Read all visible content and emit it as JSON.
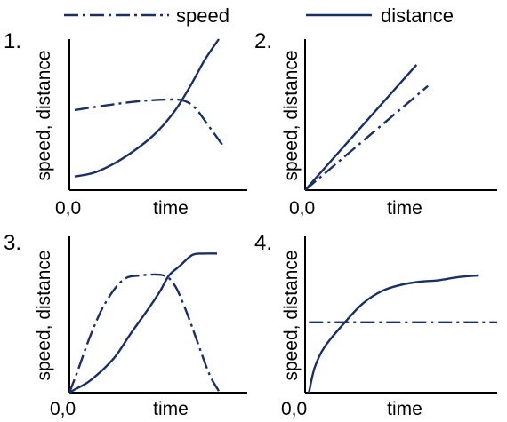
{
  "legend": {
    "items": [
      {
        "label": "speed",
        "style": "dash-dot"
      },
      {
        "label": "distance",
        "style": "solid"
      }
    ]
  },
  "colors": {
    "line": "#1a2f66",
    "axis": "#000000",
    "text": "#000000"
  },
  "chart_data": [
    {
      "type": "line",
      "number": "1.",
      "xlabel": "time",
      "ylabel": "speed, distance",
      "origin_label": "0,0",
      "xlim": [
        0,
        10
      ],
      "ylim": [
        0,
        10
      ],
      "grid": false,
      "series": [
        {
          "name": "speed",
          "x": [
            0.3,
            2,
            4,
            5.7,
            6.5,
            7.1,
            7.8,
            8.6
          ],
          "y": [
            5.3,
            5.6,
            5.9,
            6.0,
            5.9,
            5.4,
            4.3,
            3.0
          ]
        },
        {
          "name": "distance",
          "x": [
            0.3,
            1.5,
            3,
            4.7,
            5.9,
            6.8,
            7.6,
            8.4
          ],
          "y": [
            0.9,
            1.2,
            2.1,
            3.6,
            5.2,
            6.9,
            8.6,
            10.0
          ]
        }
      ]
    },
    {
      "type": "line",
      "number": "2.",
      "xlabel": "time",
      "ylabel": "speed, distance",
      "origin_label": "0,0",
      "xlim": [
        0,
        10
      ],
      "ylim": [
        0,
        10
      ],
      "grid": false,
      "series": [
        {
          "name": "speed",
          "x": [
            0,
            6.4
          ],
          "y": [
            0,
            6.9
          ]
        },
        {
          "name": "distance",
          "x": [
            0,
            5.8
          ],
          "y": [
            0,
            8.3
          ]
        }
      ]
    },
    {
      "type": "line",
      "number": "3.",
      "xlabel": "time",
      "ylabel": "speed, distance",
      "origin_label": "0,0",
      "xlim": [
        0,
        10
      ],
      "ylim": [
        0,
        10
      ],
      "grid": false,
      "series": [
        {
          "name": "speed",
          "x": [
            0,
            0.5,
            1.2,
            2,
            3,
            4,
            5.3,
            5.9,
            6.4,
            6.9,
            7.4,
            7.9,
            8.4
          ],
          "y": [
            0,
            1.5,
            3.7,
            5.7,
            7.2,
            7.5,
            7.5,
            6.9,
            5.7,
            4.2,
            2.6,
            1.1,
            0.1
          ]
        },
        {
          "name": "distance",
          "x": [
            0,
            0.3,
            1.2,
            2.5,
            3.4,
            4.4,
            5.1,
            5.6,
            6.2,
            6.9,
            7.5,
            8.3
          ],
          "y": [
            0,
            0.2,
            0.8,
            2.2,
            3.7,
            5.3,
            6.5,
            7.5,
            8.1,
            8.8,
            8.9,
            8.9
          ]
        }
      ]
    },
    {
      "type": "line",
      "number": "4.",
      "xlabel": "time",
      "ylabel": "speed, distance",
      "origin_label": "0,0",
      "xlim": [
        0,
        10
      ],
      "ylim": [
        0,
        10
      ],
      "grid": false,
      "series": [
        {
          "name": "speed",
          "x": [
            0.2,
            10
          ],
          "y": [
            4.5,
            4.5
          ]
        },
        {
          "name": "distance",
          "x": [
            0.2,
            0.5,
            1,
            2,
            3,
            4,
            5,
            6,
            7,
            8,
            9
          ],
          "y": [
            0,
            1.6,
            2.9,
            4.4,
            5.7,
            6.5,
            6.9,
            7.1,
            7.2,
            7.4,
            7.5
          ]
        }
      ]
    }
  ]
}
